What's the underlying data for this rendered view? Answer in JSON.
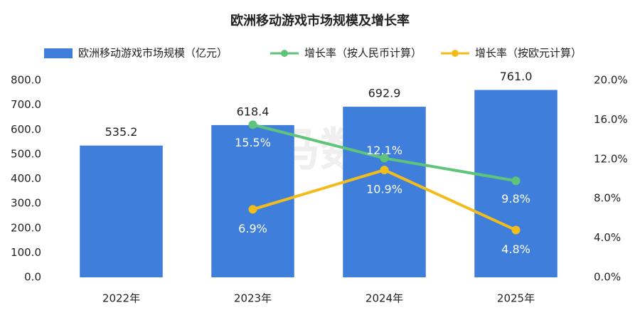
{
  "chart_data": {
    "type": "bar-line",
    "title": "欧洲移动游戏市场规模及增长率",
    "watermark": "伽马数据",
    "categories": [
      "2022年",
      "2023年",
      "2024年",
      "2025年"
    ],
    "series": [
      {
        "name": "欧洲移动游戏市场规模（亿元）",
        "type": "bar",
        "color": "#3f7fdb",
        "values": [
          535.2,
          618.4,
          692.9,
          761.0
        ],
        "value_labels": [
          "535.2",
          "618.4",
          "692.9",
          "761.0"
        ]
      },
      {
        "name": "增长率（按人民币计算）",
        "type": "line",
        "axis": "y2",
        "color": "#5ec47a",
        "values": [
          null,
          15.5,
          12.1,
          9.8
        ],
        "value_labels": [
          null,
          "15.5%",
          "12.1%",
          "9.8%"
        ]
      },
      {
        "name": "增长率（按欧元计算）",
        "type": "line",
        "axis": "y2",
        "color": "#f2bd1c",
        "values": [
          null,
          6.9,
          10.9,
          4.8
        ],
        "value_labels": [
          null,
          "6.9%",
          "10.9%",
          "4.8%"
        ]
      }
    ],
    "ylim": [
      0,
      800
    ],
    "yticks": [
      {
        "value": 0,
        "label": "0.0"
      },
      {
        "value": 100,
        "label": "100.0"
      },
      {
        "value": 200,
        "label": "200.0"
      },
      {
        "value": 300,
        "label": "300.0"
      },
      {
        "value": 400,
        "label": "400.0"
      },
      {
        "value": 500,
        "label": "500.0"
      },
      {
        "value": 600,
        "label": "600.0"
      },
      {
        "value": 700,
        "label": "700.0"
      },
      {
        "value": 800,
        "label": "800.0"
      }
    ],
    "y2lim": [
      0,
      20
    ],
    "y2ticks": [
      {
        "value": 0,
        "label": "0.0%"
      },
      {
        "value": 4,
        "label": "4.0%"
      },
      {
        "value": 8,
        "label": "8.0%"
      },
      {
        "value": 12,
        "label": "12.0%"
      },
      {
        "value": 16,
        "label": "16.0%"
      },
      {
        "value": 20,
        "label": "20.0%"
      }
    ],
    "grid": false
  }
}
